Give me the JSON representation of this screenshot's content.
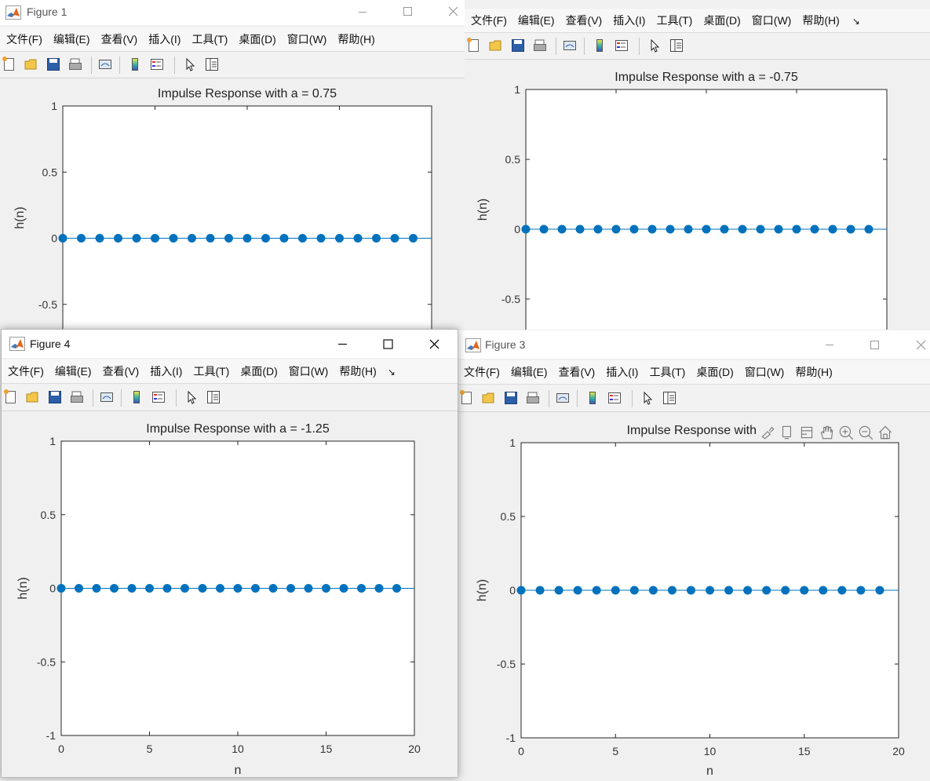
{
  "menu_items": [
    "文件(F)",
    "编辑(E)",
    "查看(V)",
    "插入(I)",
    "工具(T)",
    "桌面(D)",
    "窗口(W)",
    "帮助(H)"
  ],
  "overflow_glyph": "↘",
  "windows": {
    "figure1": {
      "title": "Figure 1"
    },
    "figure2": {
      "title": ""
    },
    "figure3": {
      "title": "Figure 3"
    },
    "figure4": {
      "title": "Figure 4"
    }
  },
  "toolbar_icons": [
    "new-figure-icon",
    "open-file-icon",
    "save-icon",
    "print-icon",
    "link-plot-icon",
    "colorbar-icon",
    "legend-icon",
    "edit-plot-arrow-icon",
    "property-inspector-icon"
  ],
  "axes_toolbar_icons": [
    "brush-data-icon",
    "data-tips-icon",
    "rotate-icon",
    "pan-hand-icon",
    "zoom-in-icon",
    "zoom-out-icon",
    "restore-view-home-icon"
  ],
  "colors": {
    "marker": "#0072bd",
    "stem_line": "#0072bd",
    "axis": "#262626"
  },
  "chart_data": [
    {
      "type": "scatter",
      "figure": "Figure 1",
      "title": "Impulse Response with a = 0.75",
      "xlabel": "",
      "ylabel": "h(n)",
      "ylim": [
        -1,
        1
      ],
      "xlim": [
        0,
        20
      ],
      "yticks": [
        "1",
        "0.5",
        "0",
        "-0.5"
      ],
      "xticks": [],
      "x": [
        0,
        1,
        2,
        3,
        4,
        5,
        6,
        7,
        8,
        9,
        10,
        11,
        12,
        13,
        14,
        15,
        16,
        17,
        18,
        19
      ],
      "y": [
        0,
        0,
        0,
        0,
        0,
        0,
        0,
        0,
        0,
        0,
        0,
        0,
        0,
        0,
        0,
        0,
        0,
        0,
        0,
        0
      ],
      "grid": false
    },
    {
      "type": "scatter",
      "figure": "",
      "title": "Impulse Response with a = -0.75",
      "xlabel": "",
      "ylabel": "h(n)",
      "ylim": [
        -1,
        1
      ],
      "xlim": [
        0,
        20
      ],
      "yticks": [
        "1",
        "0.5",
        "0",
        "-0.5"
      ],
      "xticks": [],
      "x": [
        0,
        1,
        2,
        3,
        4,
        5,
        6,
        7,
        8,
        9,
        10,
        11,
        12,
        13,
        14,
        15,
        16,
        17,
        18,
        19
      ],
      "y": [
        0,
        0,
        0,
        0,
        0,
        0,
        0,
        0,
        0,
        0,
        0,
        0,
        0,
        0,
        0,
        0,
        0,
        0,
        0,
        0
      ],
      "grid": false
    },
    {
      "type": "scatter",
      "figure": "Figure 4",
      "title": "Impulse Response with a = -1.25",
      "xlabel": "n",
      "ylabel": "h(n)",
      "ylim": [
        -1,
        1
      ],
      "xlim": [
        0,
        20
      ],
      "yticks": [
        "1",
        "0.5",
        "0",
        "-0.5",
        "-1"
      ],
      "xticks": [
        "0",
        "5",
        "10",
        "15",
        "20"
      ],
      "x": [
        0,
        1,
        2,
        3,
        4,
        5,
        6,
        7,
        8,
        9,
        10,
        11,
        12,
        13,
        14,
        15,
        16,
        17,
        18,
        19
      ],
      "y": [
        0,
        0,
        0,
        0,
        0,
        0,
        0,
        0,
        0,
        0,
        0,
        0,
        0,
        0,
        0,
        0,
        0,
        0,
        0,
        0
      ],
      "grid": false
    },
    {
      "type": "scatter",
      "figure": "Figure 3",
      "title": "Impulse Response with",
      "xlabel": "n",
      "ylabel": "h(n)",
      "ylim": [
        -1,
        1
      ],
      "xlim": [
        0,
        20
      ],
      "yticks": [
        "1",
        "0.5",
        "0",
        "-0.5",
        "-1"
      ],
      "xticks": [
        "0",
        "5",
        "10",
        "15",
        "20"
      ],
      "x": [
        0,
        1,
        2,
        3,
        4,
        5,
        6,
        7,
        8,
        9,
        10,
        11,
        12,
        13,
        14,
        15,
        16,
        17,
        18,
        19
      ],
      "y": [
        0,
        0,
        0,
        0,
        0,
        0,
        0,
        0,
        0,
        0,
        0,
        0,
        0,
        0,
        0,
        0,
        0,
        0,
        0,
        0
      ],
      "grid": false
    }
  ]
}
